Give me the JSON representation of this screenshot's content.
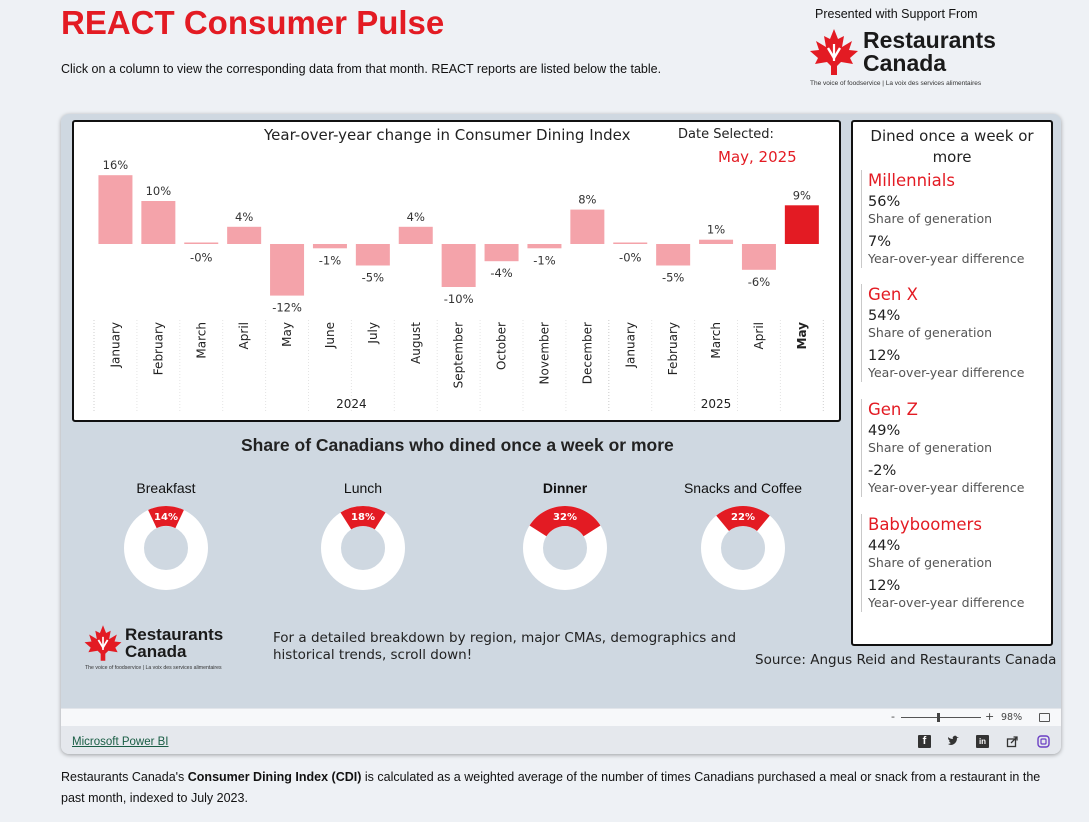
{
  "header": {
    "title": "REACT Consumer Pulse",
    "intro": "Click on a column to view the corresponding data from that month. REACT reports are listed below the table.",
    "support_text": "Presented with Support From"
  },
  "brand": {
    "name_line1": "Restaurants",
    "name_line2": "Canada",
    "tagline": "The voice of foodservice | La voix des services alimentaires",
    "logo_icon": "maple-leaf-icon"
  },
  "colors": {
    "accent": "#e31b23",
    "bar_default": "#f4a3aa",
    "bar_selected": "#e31b23",
    "donut_remainder": "#ffffff"
  },
  "chart_data": {
    "type": "bar",
    "title": "Year-over-year change in Consumer Dining Index",
    "categories": [
      "January",
      "February",
      "March",
      "April",
      "May",
      "June",
      "July",
      "August",
      "September",
      "October",
      "November",
      "December",
      "January",
      "February",
      "March",
      "April",
      "May"
    ],
    "years": [
      {
        "label": "2024",
        "count": 12
      },
      {
        "label": "2025",
        "count": 5
      }
    ],
    "values": [
      16,
      10,
      0,
      4,
      -12,
      -1,
      -5,
      4,
      -10,
      -4,
      -1,
      8,
      0,
      -5,
      1,
      -6,
      9
    ],
    "data_labels": [
      "16%",
      "10%",
      "-0%",
      "4%",
      "-12%",
      "-1%",
      "-5%",
      "4%",
      "-10%",
      "-4%",
      "-1%",
      "8%",
      "-0%",
      "-5%",
      "1%",
      "-6%",
      "9%"
    ],
    "selected_index": 16,
    "ylim": [
      -13,
      17
    ],
    "grid": false
  },
  "date_selected": {
    "label": "Date Selected:",
    "value": "May, 2025"
  },
  "generations": {
    "title": "Dined once a week or more",
    "share_caption": "Share of generation",
    "yoy_caption": "Year-over-year difference",
    "items": [
      {
        "name": "Millennials",
        "share": "56%",
        "yoy": "7%"
      },
      {
        "name": "Gen X",
        "share": "54%",
        "yoy": "12%"
      },
      {
        "name": "Gen Z",
        "share": "49%",
        "yoy": "-2%"
      },
      {
        "name": "Babyboomers",
        "share": "44%",
        "yoy": "12%"
      }
    ]
  },
  "meals": {
    "title": "Share of Canadians who dined once a week or more",
    "chart_data": {
      "type": "pie",
      "categories": [
        "Breakfast",
        "Lunch",
        "Dinner",
        "Snacks and Coffee"
      ],
      "values": [
        14,
        18,
        32,
        22
      ],
      "data_labels": [
        "14%",
        "18%",
        "32%",
        "22%"
      ]
    }
  },
  "breakdown_text": "For a detailed breakdown by region, major CMAs, demographics and historical trends, scroll down!",
  "source_text": "Source: Angus Reid and Restaurants Canada",
  "viewer": {
    "zoom_minus": "-",
    "zoom_plus": "+",
    "zoom_level": "98%",
    "fit_icon": "fit-to-page-icon",
    "powerbi_link": "Microsoft Power BI",
    "share_icons": [
      "facebook-icon",
      "twitter-icon",
      "linkedin-icon",
      "share-icon",
      "embed-icon"
    ]
  },
  "cdi": {
    "before": "Restaurants Canada's ",
    "bold": "Consumer Dining Index (CDI)",
    "after": " is calculated as a weighted average of the number of times Canadians purchased a meal or snack from a restaurant in the past month, indexed to July 2023."
  }
}
